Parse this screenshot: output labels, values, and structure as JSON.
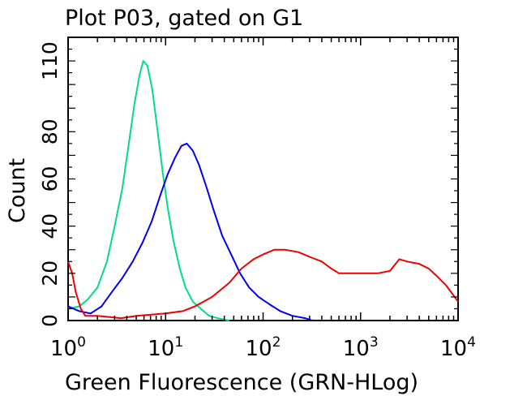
{
  "chart_data": {
    "type": "line",
    "title": "Plot P03, gated on G1",
    "xlabel": "Green Fluorescence (GRN-HLog)",
    "ylabel": "Count",
    "x_scale": "log",
    "xlim": [
      1,
      10000
    ],
    "ylim": [
      0,
      120
    ],
    "x_ticks": [
      {
        "base": "10",
        "exp": "0",
        "value": 1
      },
      {
        "base": "10",
        "exp": "1",
        "value": 10
      },
      {
        "base": "10",
        "exp": "2",
        "value": 100
      },
      {
        "base": "10",
        "exp": "3",
        "value": 1000
      },
      {
        "base": "10",
        "exp": "4",
        "value": 10000
      }
    ],
    "y_ticks": [
      "0",
      "20",
      "40",
      "60",
      "80",
      "110"
    ],
    "y_tick_values": [
      0,
      20,
      40,
      60,
      80,
      110
    ],
    "series": [
      {
        "color": "#00dd88",
        "points": [
          [
            1.0,
            5
          ],
          [
            1.3,
            6
          ],
          [
            1.6,
            9
          ],
          [
            2.0,
            14
          ],
          [
            2.5,
            25
          ],
          [
            3.0,
            40
          ],
          [
            3.6,
            56
          ],
          [
            4.2,
            75
          ],
          [
            4.8,
            92
          ],
          [
            5.4,
            104
          ],
          [
            5.9,
            110
          ],
          [
            6.5,
            108
          ],
          [
            7.3,
            98
          ],
          [
            8.3,
            80
          ],
          [
            9.4,
            62
          ],
          [
            10.5,
            48
          ],
          [
            12,
            34
          ],
          [
            14,
            22
          ],
          [
            16,
            14
          ],
          [
            19,
            8
          ],
          [
            23,
            5
          ],
          [
            28,
            2
          ],
          [
            34,
            1
          ],
          [
            45,
            0
          ]
        ]
      },
      {
        "color": "#0000ee",
        "points": [
          [
            1.0,
            6
          ],
          [
            1.3,
            4
          ],
          [
            1.7,
            3
          ],
          [
            2.2,
            6
          ],
          [
            2.8,
            12
          ],
          [
            3.6,
            18
          ],
          [
            4.6,
            25
          ],
          [
            5.8,
            33
          ],
          [
            7.2,
            42
          ],
          [
            8.8,
            53
          ],
          [
            10.5,
            62
          ],
          [
            12.5,
            69
          ],
          [
            14.5,
            74
          ],
          [
            16.5,
            75
          ],
          [
            19,
            72
          ],
          [
            22,
            66
          ],
          [
            26,
            57
          ],
          [
            31,
            47
          ],
          [
            38,
            36
          ],
          [
            47,
            28
          ],
          [
            58,
            20
          ],
          [
            72,
            14
          ],
          [
            90,
            10
          ],
          [
            115,
            7
          ],
          [
            150,
            4
          ],
          [
            200,
            2
          ],
          [
            270,
            1
          ],
          [
            320,
            0
          ]
        ]
      },
      {
        "color": "#ee0000",
        "points": [
          [
            1.0,
            25
          ],
          [
            1.1,
            20
          ],
          [
            1.2,
            12
          ],
          [
            1.35,
            5
          ],
          [
            1.5,
            2
          ],
          [
            2.0,
            2
          ],
          [
            3.5,
            1
          ],
          [
            5,
            2
          ],
          [
            10,
            3
          ],
          [
            15,
            4
          ],
          [
            20,
            6
          ],
          [
            30,
            10
          ],
          [
            45,
            16
          ],
          [
            60,
            22
          ],
          [
            80,
            26
          ],
          [
            100,
            28
          ],
          [
            130,
            30
          ],
          [
            170,
            30
          ],
          [
            230,
            29
          ],
          [
            300,
            27
          ],
          [
            400,
            25
          ],
          [
            500,
            22
          ],
          [
            600,
            20
          ],
          [
            800,
            20
          ],
          [
            1000,
            20
          ],
          [
            1500,
            20
          ],
          [
            2000,
            21
          ],
          [
            2500,
            26
          ],
          [
            3000,
            25
          ],
          [
            4000,
            24
          ],
          [
            5000,
            22
          ],
          [
            6000,
            19
          ],
          [
            7500,
            15
          ],
          [
            8500,
            12
          ],
          [
            10000,
            8
          ]
        ]
      }
    ],
    "grid": false
  }
}
